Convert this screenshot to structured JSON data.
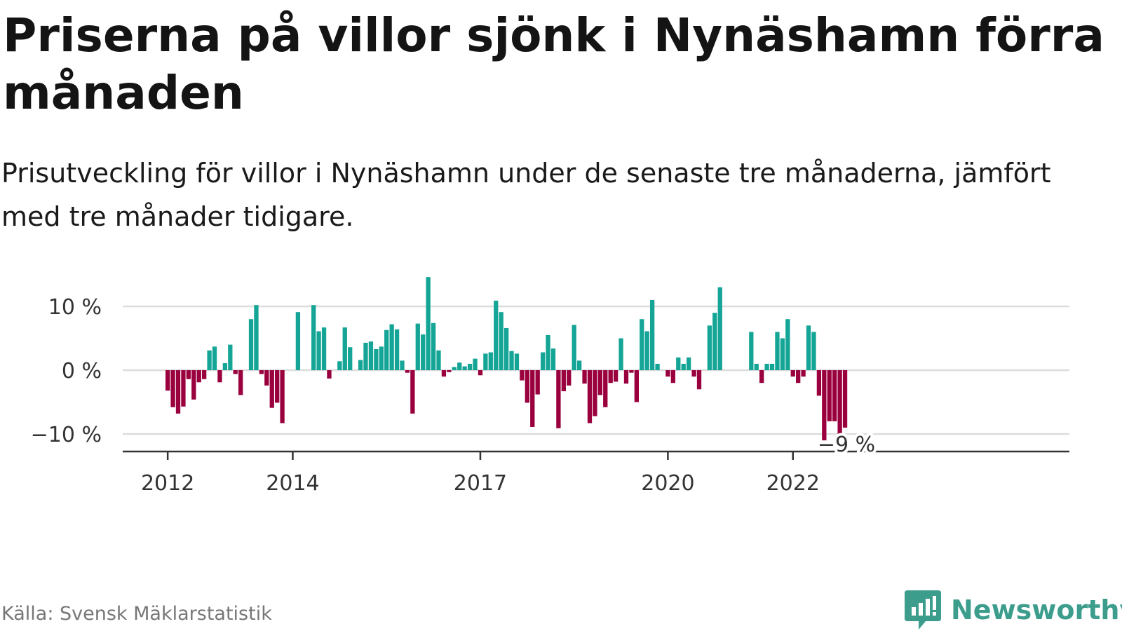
{
  "title": "Priserna på villor sjönk i Nynäshamn förra månaden",
  "subtitle": "Prisutveckling för villor i Nynäshamn under de senaste tre månaderna, jämfört med tre månader tidigare.",
  "source": "Källa: Svensk Mäklarstatistik",
  "brand": "Newsworthy",
  "colors": {
    "positive": "#14a596",
    "negative": "#99003d",
    "brand": "#3c9d8d",
    "grid": "#dcdcdc",
    "axis": "#333333"
  },
  "chart_data": {
    "type": "bar",
    "title": "Priserna på villor sjönk i Nynäshamn förra månaden",
    "ylabel": "",
    "xlabel": "",
    "ylim": [
      -13,
      16
    ],
    "grid": true,
    "y_ticks": [
      {
        "value": 10,
        "label": "10 %"
      },
      {
        "value": 0,
        "label": "0 %"
      },
      {
        "value": -10,
        "label": "−10 %"
      }
    ],
    "x_ticks": [
      {
        "value": 2012,
        "label": "2012"
      },
      {
        "value": 2014,
        "label": "2014"
      },
      {
        "value": 2017,
        "label": "2017"
      },
      {
        "value": 2020,
        "label": "2020"
      },
      {
        "value": 2022,
        "label": "2022"
      }
    ],
    "last_value_label": "−9 %",
    "series": [
      {
        "start": "2012-01",
        "values": [
          -3.2,
          -5.8,
          -6.8,
          -5.7,
          -1.4,
          -4.6,
          -1.9,
          -1.4,
          3.1,
          3.7,
          -1.9,
          1.1,
          4.0,
          -0.6,
          -3.9,
          null,
          8.0,
          10.2,
          -0.6,
          -2.4,
          -5.9,
          -5.1,
          -8.3,
          null,
          null,
          9.1,
          null,
          null,
          10.2,
          6.1,
          6.7,
          -1.3,
          null,
          1.4,
          6.7,
          3.6,
          null,
          1.6,
          4.3,
          4.5,
          3.3,
          3.7,
          6.3,
          7.2,
          6.4,
          1.5,
          -0.4,
          -6.8,
          7.3,
          5.6,
          14.6,
          7.4,
          3.1,
          -1.0,
          -0.3,
          0.5,
          1.2,
          0.6,
          1.0,
          1.8,
          -0.8,
          2.6,
          2.8,
          10.9,
          9.1,
          6.6,
          3.0,
          2.6,
          -1.6,
          -5.1,
          -8.9,
          -3.8,
          2.8,
          5.5,
          3.4,
          -9.1,
          -3.3,
          -2.4,
          7.1,
          1.5,
          -2.1,
          -8.3,
          -7.2,
          -3.9,
          -5.8,
          -2.0,
          -1.8,
          5.0,
          -2.1,
          -0.4,
          -5.0,
          8.0,
          6.1,
          11.0,
          1.0,
          null,
          -1.0,
          -2.0,
          2.0,
          1.0,
          2.0,
          -1.0,
          -3.0,
          null,
          7.0,
          9.0,
          13.0,
          null,
          null,
          null,
          null,
          null,
          6.0,
          1.0,
          -2.0,
          1.0,
          1.0,
          6.0,
          5.0,
          8.0,
          -1.0,
          -2.0,
          -1.0,
          7.0,
          6.0,
          -4.0,
          -11.0,
          -8.0,
          -8.0,
          -10.0,
          -9.0
        ]
      }
    ]
  }
}
